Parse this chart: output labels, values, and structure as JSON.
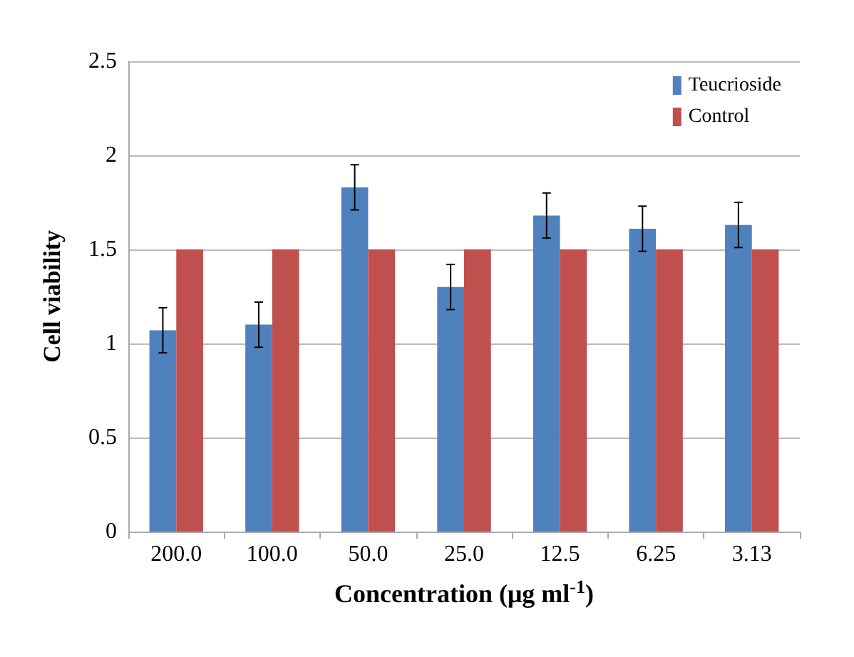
{
  "chart_data": {
    "type": "bar",
    "xlabel": "Concentration (μg ml$^{-1}$)",
    "ylabel": "Cell viability",
    "categories": [
      "200.0",
      "100.0",
      "50.0",
      "25.0",
      "12.5",
      "6.25",
      "3.13"
    ],
    "series": [
      {
        "name": "Teucrioside",
        "color": "#4f81bd",
        "values": [
          1.07,
          1.1,
          1.83,
          1.3,
          1.68,
          1.61,
          1.63
        ],
        "errors": [
          0.12,
          0.12,
          0.12,
          0.12,
          0.12,
          0.12,
          0.12
        ]
      },
      {
        "name": "Control",
        "color": "#c0504d",
        "values": [
          1.5,
          1.5,
          1.5,
          1.5,
          1.5,
          1.5,
          1.5
        ]
      }
    ],
    "ylim": [
      0,
      2.5
    ],
    "yticks": [
      0,
      0.5,
      1,
      1.5,
      2,
      2.5
    ],
    "grid": "y",
    "legend": "top right"
  }
}
